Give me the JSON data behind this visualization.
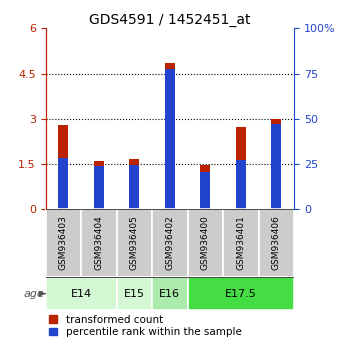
{
  "title": "GDS4591 / 1452451_at",
  "samples": [
    "GSM936403",
    "GSM936404",
    "GSM936405",
    "GSM936402",
    "GSM936400",
    "GSM936401",
    "GSM936406"
  ],
  "transformed_counts": [
    2.8,
    1.6,
    1.65,
    4.85,
    1.45,
    2.72,
    3.0
  ],
  "percentile_ranks_left_scale": [
    1.68,
    1.42,
    1.47,
    4.65,
    1.22,
    1.62,
    2.82
  ],
  "age_groups": [
    {
      "label": "E14",
      "span": [
        0,
        1
      ],
      "color": "#d4f7d4"
    },
    {
      "label": "E15",
      "span": [
        2,
        2
      ],
      "color": "#d4f7d4"
    },
    {
      "label": "E16",
      "span": [
        3,
        3
      ],
      "color": "#aaeaaa"
    },
    {
      "label": "E17.5",
      "span": [
        4,
        6
      ],
      "color": "#44dd44"
    }
  ],
  "ylim_left": [
    0,
    6
  ],
  "ylim_right": [
    0,
    100
  ],
  "yticks_left": [
    0,
    1.5,
    3.0,
    4.5,
    6.0
  ],
  "yticks_left_labels": [
    "0",
    "1.5",
    "3",
    "4.5",
    "6"
  ],
  "yticks_right": [
    0,
    25,
    50,
    75,
    100
  ],
  "yticks_right_labels": [
    "0",
    "25",
    "50",
    "75",
    "100%"
  ],
  "bar_color_red": "#bb2200",
  "bar_color_blue": "#2244cc",
  "bar_width": 0.28,
  "sample_area_color": "#cccccc",
  "legend_red_label": "transformed count",
  "legend_blue_label": "percentile rank within the sample",
  "age_label_text": "age"
}
